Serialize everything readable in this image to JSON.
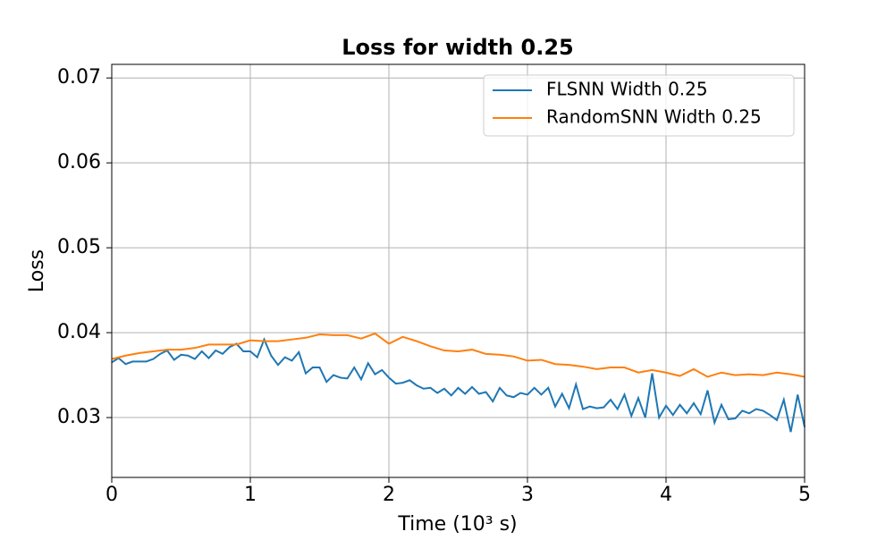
{
  "chart_data": {
    "type": "line",
    "title": "Loss for width 0.25",
    "xlabel": "Time (10³ s)",
    "ylabel": "Loss",
    "xlim": [
      0,
      5
    ],
    "ylim": [
      0.02295,
      0.0716
    ],
    "xticks": [
      0,
      1,
      2,
      3,
      4,
      5
    ],
    "yticks": [
      0.03,
      0.04,
      0.05,
      0.06,
      0.07
    ],
    "grid": true,
    "legend": "upper right",
    "series": [
      {
        "name": "FLSNN Width 0.25",
        "color": "#1f77b4",
        "x": [
          0,
          0.05,
          0.1,
          0.15,
          0.2,
          0.25,
          0.3,
          0.35,
          0.4,
          0.45,
          0.5,
          0.55,
          0.6,
          0.65,
          0.7,
          0.75,
          0.8,
          0.85,
          0.9,
          0.95,
          1,
          1.05,
          1.1,
          1.15,
          1.2,
          1.25,
          1.3,
          1.35,
          1.4,
          1.45,
          1.5,
          1.55,
          1.6,
          1.65,
          1.7,
          1.75,
          1.8,
          1.85,
          1.9,
          1.95,
          2,
          2.05,
          2.1,
          2.15,
          2.2,
          2.25,
          2.3,
          2.35,
          2.4,
          2.45,
          2.5,
          2.55,
          2.6,
          2.65,
          2.7,
          2.75,
          2.8,
          2.85,
          2.9,
          2.95,
          3,
          3.05,
          3.1,
          3.15,
          3.2,
          3.25,
          3.3,
          3.35,
          3.4,
          3.45,
          3.5,
          3.55,
          3.6,
          3.65,
          3.7,
          3.75,
          3.8,
          3.85,
          3.9,
          3.95,
          4,
          4.05,
          4.1,
          4.15,
          4.2,
          4.25,
          4.3,
          4.35,
          4.4,
          4.45,
          4.5,
          4.55,
          4.6,
          4.65,
          4.7,
          4.75,
          4.8,
          4.85,
          4.9,
          4.95,
          5
        ],
        "values": [
          0.0365,
          0.037,
          0.0363,
          0.0366,
          0.0366,
          0.0366,
          0.0369,
          0.0375,
          0.0379,
          0.0368,
          0.0374,
          0.0373,
          0.0369,
          0.0378,
          0.037,
          0.0379,
          0.0375,
          0.0383,
          0.0387,
          0.0378,
          0.0378,
          0.0371,
          0.0392,
          0.0373,
          0.0362,
          0.0371,
          0.0367,
          0.0377,
          0.0352,
          0.0359,
          0.0359,
          0.0342,
          0.035,
          0.0347,
          0.0346,
          0.0359,
          0.0345,
          0.0364,
          0.0351,
          0.0356,
          0.0347,
          0.034,
          0.0341,
          0.0344,
          0.0338,
          0.0334,
          0.0335,
          0.0329,
          0.0334,
          0.0326,
          0.0335,
          0.0328,
          0.0336,
          0.0328,
          0.033,
          0.0319,
          0.0335,
          0.0326,
          0.0324,
          0.0329,
          0.0327,
          0.0335,
          0.0327,
          0.0335,
          0.0313,
          0.0328,
          0.0311,
          0.0339,
          0.031,
          0.0313,
          0.0311,
          0.0312,
          0.0321,
          0.031,
          0.0327,
          0.0302,
          0.0323,
          0.03,
          0.0352,
          0.03,
          0.0314,
          0.0303,
          0.0315,
          0.0305,
          0.0317,
          0.0304,
          0.0332,
          0.0294,
          0.0315,
          0.0298,
          0.0299,
          0.0308,
          0.0305,
          0.031,
          0.0308,
          0.0303,
          0.0297,
          0.0321,
          0.0283,
          0.0327,
          0.0289
        ]
      },
      {
        "name": "RandomSNN Width 0.25",
        "color": "#ff7f0e",
        "x": [
          0,
          0.1,
          0.2,
          0.3,
          0.4,
          0.5,
          0.6,
          0.7,
          0.8,
          0.9,
          1,
          1.1,
          1.2,
          1.3,
          1.4,
          1.5,
          1.6,
          1.7,
          1.8,
          1.9,
          2,
          2.1,
          2.2,
          2.3,
          2.4,
          2.5,
          2.6,
          2.7,
          2.8,
          2.9,
          3,
          3.1,
          3.2,
          3.3,
          3.4,
          3.5,
          3.6,
          3.7,
          3.8,
          3.9,
          4,
          4.1,
          4.2,
          4.3,
          4.4,
          4.5,
          4.6,
          4.7,
          4.8,
          4.9,
          5
        ],
        "values": [
          0.0369,
          0.0373,
          0.0376,
          0.0378,
          0.038,
          0.038,
          0.0382,
          0.0386,
          0.0386,
          0.0386,
          0.0391,
          0.039,
          0.039,
          0.0392,
          0.0394,
          0.0398,
          0.0397,
          0.0397,
          0.0393,
          0.0399,
          0.0387,
          0.0395,
          0.039,
          0.0384,
          0.0379,
          0.0378,
          0.038,
          0.0375,
          0.0374,
          0.0372,
          0.0367,
          0.0368,
          0.0363,
          0.0362,
          0.036,
          0.0357,
          0.0359,
          0.0359,
          0.0353,
          0.0356,
          0.0353,
          0.0349,
          0.0357,
          0.0348,
          0.0353,
          0.035,
          0.0351,
          0.035,
          0.0353,
          0.0351,
          0.0348
        ]
      }
    ]
  }
}
